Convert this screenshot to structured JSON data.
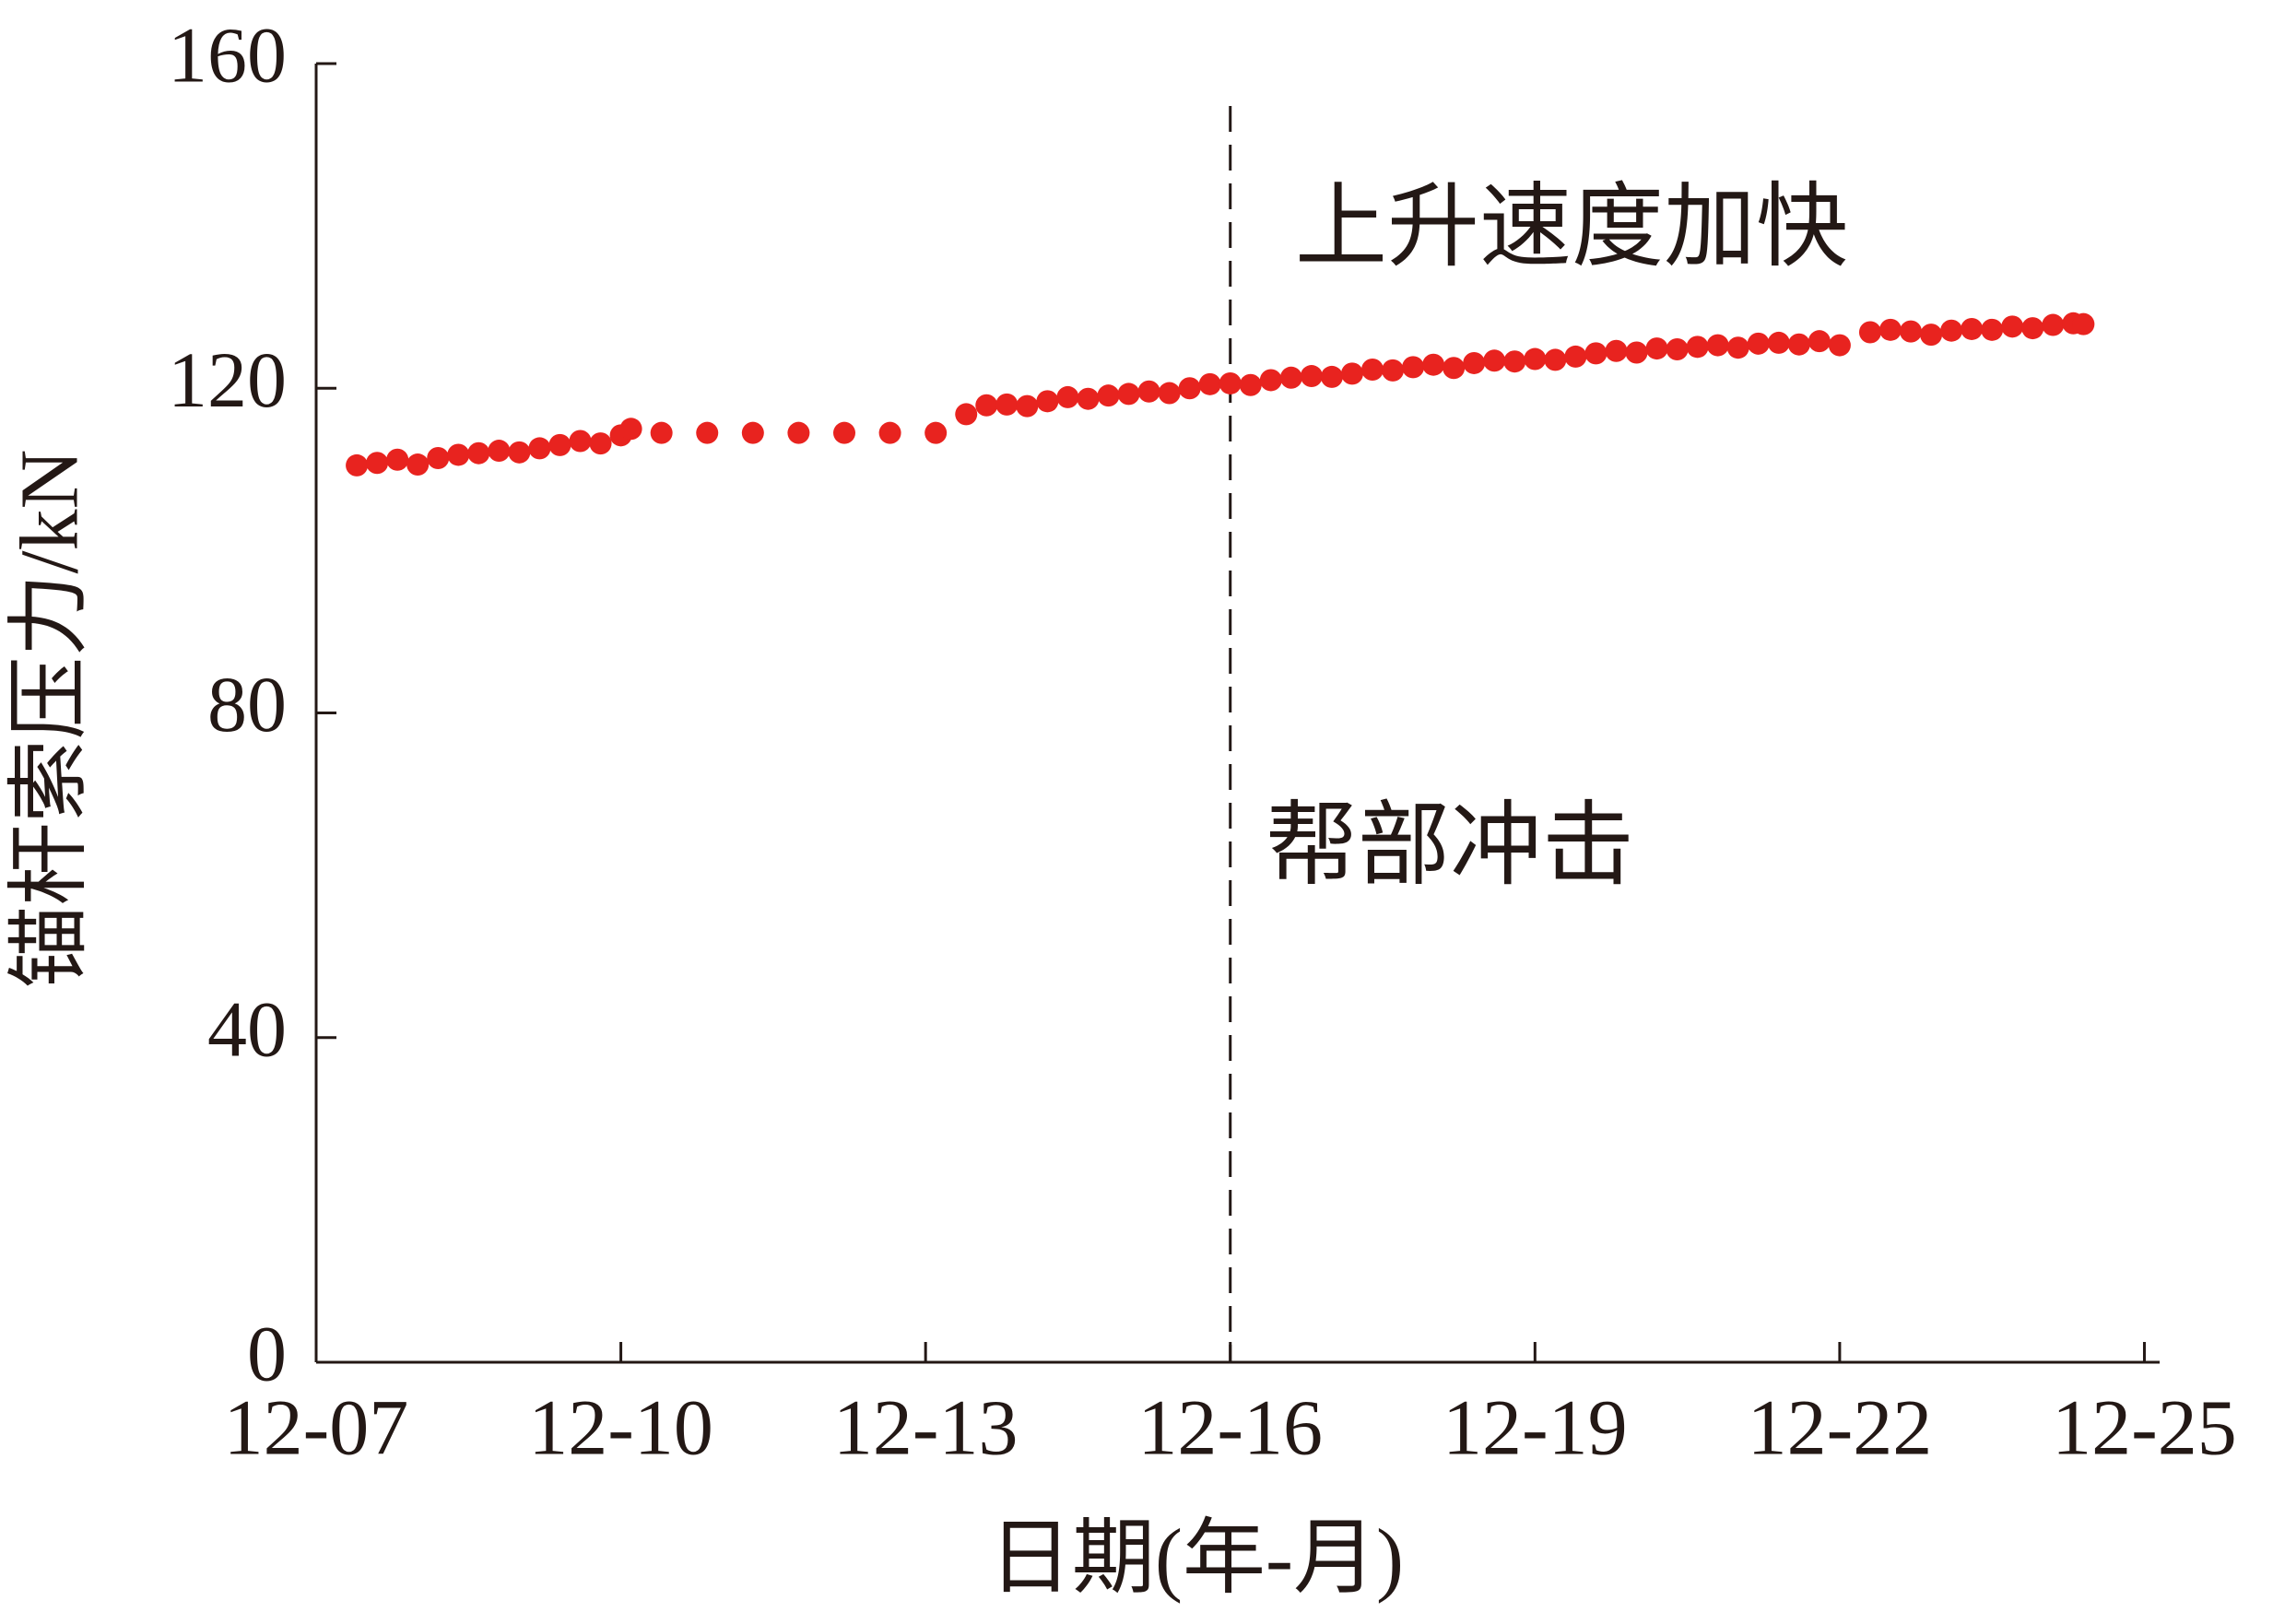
{
  "chart_data": {
    "type": "scatter",
    "x_label": "日期(年-月)",
    "y_label": "锚杆索压力/kN",
    "xlim": [
      7,
      25.15
    ],
    "ylim": [
      0,
      160
    ],
    "xticks": [
      {
        "value": 7,
        "label": "12-07"
      },
      {
        "value": 10,
        "label": "12-10"
      },
      {
        "value": 13,
        "label": "12-13"
      },
      {
        "value": 16,
        "label": "12-16"
      },
      {
        "value": 19,
        "label": "12-19"
      },
      {
        "value": 22,
        "label": "12-22"
      },
      {
        "value": 25,
        "label": "12-25"
      }
    ],
    "yticks": [
      0,
      40,
      80,
      120,
      160
    ],
    "grid": false,
    "vline_x": 16,
    "annotations": [
      "上升速度加快",
      "帮部冲击"
    ],
    "series": [
      {
        "color": "#e8231f",
        "x": [
          7.4,
          7.6,
          7.8,
          8.0,
          8.2,
          8.4,
          8.6,
          8.8,
          9.0,
          9.2,
          9.4,
          9.6,
          9.8,
          10.0,
          10.1,
          10.4,
          10.85,
          11.3,
          11.75,
          12.2,
          12.65,
          13.1,
          13.4,
          13.6,
          13.8,
          14.0,
          14.2,
          14.4,
          14.6,
          14.8,
          15.0,
          15.2,
          15.4,
          15.6,
          15.8,
          16.0,
          16.2,
          16.4,
          16.6,
          16.8,
          17.0,
          17.2,
          17.4,
          17.6,
          17.8,
          18.0,
          18.2,
          18.4,
          18.6,
          18.8,
          19.0,
          19.2,
          19.4,
          19.6,
          19.8,
          20.0,
          20.2,
          20.4,
          20.6,
          20.8,
          21.0,
          21.2,
          21.4,
          21.6,
          21.8,
          22.0,
          22.3,
          22.5,
          22.7,
          22.9,
          23.1,
          23.3,
          23.5,
          23.7,
          23.9,
          24.1,
          24.3,
          24.4
        ],
        "values": [
          110.5,
          110.8,
          111.2,
          110.6,
          111.4,
          111.8,
          112.0,
          112.3,
          112.1,
          112.6,
          113.0,
          113.5,
          113.2,
          114.2,
          115.0,
          114.5,
          114.5,
          114.5,
          114.5,
          114.5,
          114.5,
          114.5,
          116.8,
          117.9,
          118.0,
          117.8,
          118.4,
          118.9,
          118.7,
          119.1,
          119.3,
          119.6,
          119.4,
          120.0,
          120.5,
          120.6,
          120.4,
          121.0,
          121.3,
          121.5,
          121.4,
          121.8,
          122.3,
          122.2,
          122.6,
          122.9,
          122.5,
          123.1,
          123.4,
          123.3,
          123.6,
          123.5,
          123.9,
          124.3,
          124.6,
          124.4,
          124.9,
          124.8,
          125.1,
          125.3,
          125.0,
          125.5,
          125.6,
          125.4,
          125.8,
          125.3,
          126.9,
          127.2,
          127.0,
          126.6,
          127.1,
          127.3,
          127.2,
          127.6,
          127.4,
          127.8,
          128.0,
          127.9
        ]
      }
    ]
  }
}
